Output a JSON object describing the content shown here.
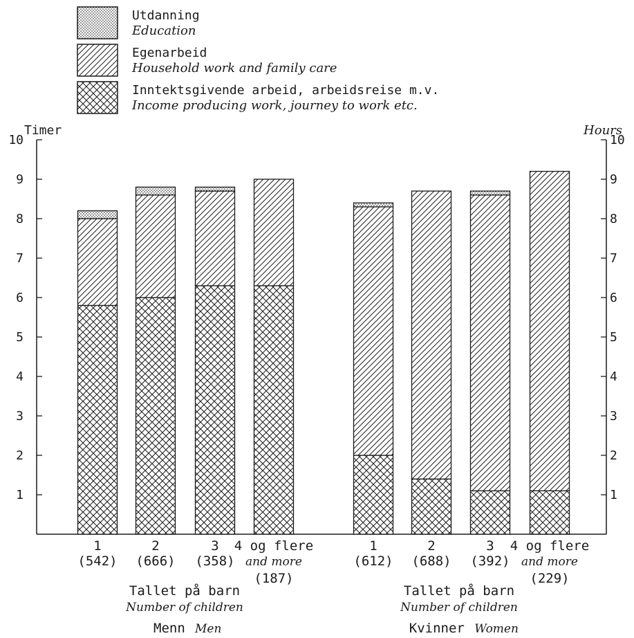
{
  "chart_data": {
    "type": "bar",
    "stacked": true,
    "left_axis_label": "Timer",
    "right_axis_label": "Hours",
    "ylim": [
      0,
      10
    ],
    "yticks": [
      1,
      2,
      3,
      4,
      5,
      6,
      7,
      8,
      9,
      10
    ],
    "legend": [
      {
        "key": "education",
        "label": "Utdanning",
        "sublabel": "Education",
        "pattern": "dots"
      },
      {
        "key": "household",
        "label": "Egenarbeid",
        "sublabel": "Household work and family care",
        "pattern": "diagonal"
      },
      {
        "key": "income",
        "label": "Inntektsgivende arbeid, arbeidsreise m.v.",
        "sublabel": "Income producing work, journey to work etc.",
        "pattern": "crosshatch"
      }
    ],
    "groups": [
      {
        "name": "Menn",
        "name_en": "Men",
        "axis_title": "Tallet på barn",
        "axis_title_en": "Number of children",
        "bars": [
          {
            "cat": "1",
            "cat_en": "",
            "n": "(542)",
            "income": 5.8,
            "household": 2.2,
            "education": 0.2
          },
          {
            "cat": "2",
            "cat_en": "",
            "n": "(666)",
            "income": 6.0,
            "household": 2.6,
            "education": 0.2
          },
          {
            "cat": "3",
            "cat_en": "",
            "n": "(358)",
            "income": 6.3,
            "household": 2.4,
            "education": 0.1
          },
          {
            "cat": "4 og flere",
            "cat_en": "and more",
            "n": "(187)",
            "income": 6.3,
            "household": 2.7,
            "education": 0.0
          }
        ]
      },
      {
        "name": "Kvinner",
        "name_en": "Women",
        "axis_title": "Tallet på barn",
        "axis_title_en": "Number of children",
        "bars": [
          {
            "cat": "1",
            "cat_en": "",
            "n": "(612)",
            "income": 2.0,
            "household": 6.3,
            "education": 0.1
          },
          {
            "cat": "2",
            "cat_en": "",
            "n": "(688)",
            "income": 1.4,
            "household": 7.3,
            "education": 0.0
          },
          {
            "cat": "3",
            "cat_en": "",
            "n": "(392)",
            "income": 1.1,
            "household": 7.5,
            "education": 0.1
          },
          {
            "cat": "4 og flere",
            "cat_en": "and more",
            "n": "(229)",
            "income": 1.1,
            "household": 8.1,
            "education": 0.0
          }
        ]
      }
    ]
  }
}
